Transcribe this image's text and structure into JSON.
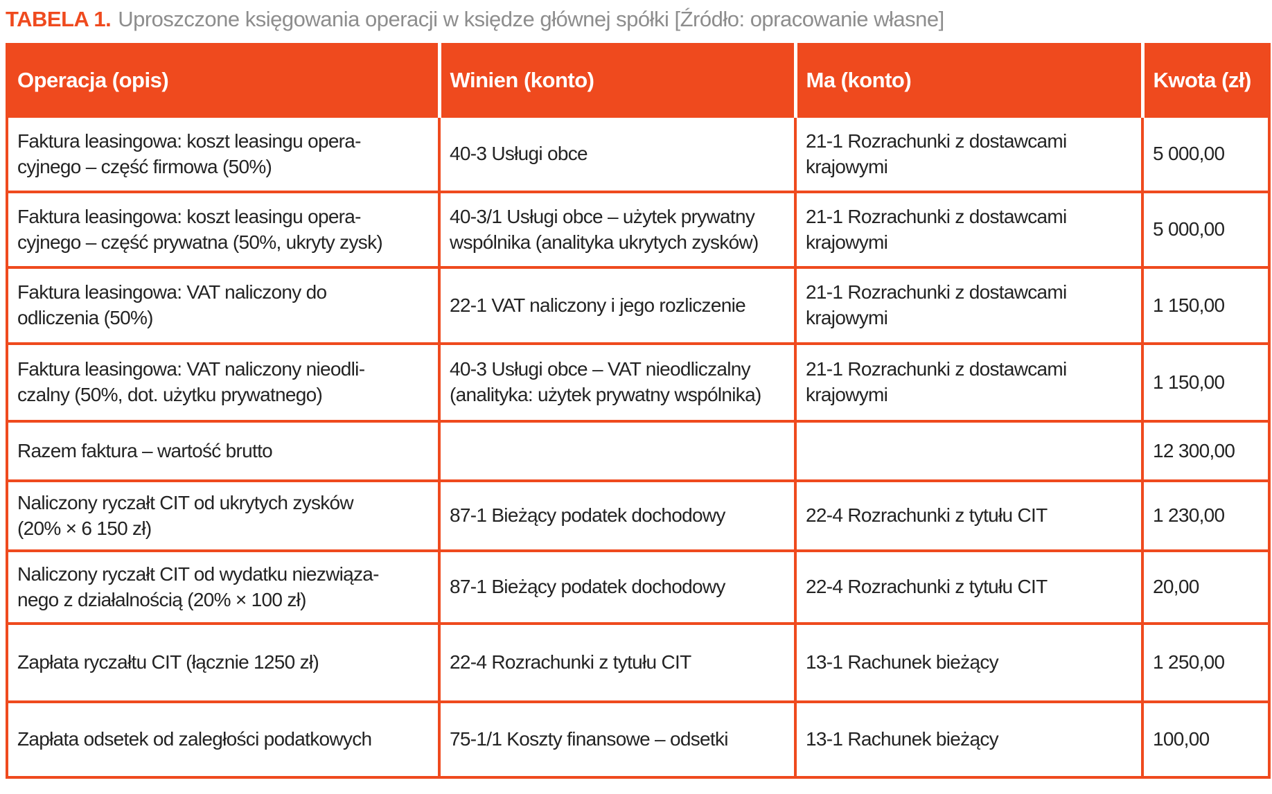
{
  "title": {
    "label": "TABELA 1.",
    "text": "Uproszczone księgowania operacji w księdze głównej spółki [Źródło: opracowanie własne]"
  },
  "colors": {
    "accent_orange": "#ef4a1e",
    "header_text": "#ffffff",
    "body_text": "#232323",
    "title_gray": "#8d8d8d"
  },
  "table": {
    "headers": [
      "Operacja (opis)",
      "Winien (konto)",
      "Ma (konto)",
      "Kwota (zł)"
    ],
    "rows": [
      {
        "operacja": "Faktura leasingowa: koszt leasingu opera-\ncyjnego – część firmowa (50%)",
        "winien": "40-3 Usługi obce",
        "ma": "21-1 Rozrachunki z dostawcami\nkrajowymi",
        "kwota": "5 000,00"
      },
      {
        "operacja": "Faktura leasingowa: koszt leasingu opera-\ncyjnego – część prywatna (50%, ukryty zysk)",
        "winien": "40-3/1 Usługi obce – użytek prywatny\nwspólnika (analityka ukrytych zysków)",
        "ma": "21-1 Rozrachunki z dostawcami\nkrajowymi",
        "kwota": "5 000,00"
      },
      {
        "operacja": "Faktura leasingowa: VAT naliczony do\nodliczenia (50%)",
        "winien": "22-1 VAT naliczony i jego rozliczenie",
        "ma": "21-1 Rozrachunki z dostawcami\nkrajowymi",
        "kwota": "1 150,00"
      },
      {
        "operacja": "Faktura leasingowa: VAT naliczony nieodli-\nczalny (50%, dot. użytku prywatnego)",
        "winien": "40-3 Usługi obce – VAT nieodliczalny\n(analityka: użytek prywatny wspólnika)",
        "ma": "21-1 Rozrachunki z dostawcami\nkrajowymi",
        "kwota": "1 150,00"
      },
      {
        "operacja": "Razem faktura – wartość brutto",
        "winien": "",
        "ma": "",
        "kwota": "12 300,00"
      },
      {
        "operacja": "Naliczony ryczałt CIT od ukrytych zysków\n(20% × 6 150 zł)",
        "winien": "87-1 Bieżący podatek dochodowy",
        "ma": "22-4 Rozrachunki z tytułu CIT",
        "kwota": "1 230,00"
      },
      {
        "operacja": "Naliczony ryczałt CIT od wydatku niezwiąza-\nnego z działalnością (20% × 100 zł)",
        "winien": "87-1 Bieżący podatek dochodowy",
        "ma": "22-4 Rozrachunki z tytułu CIT",
        "kwota": "20,00"
      },
      {
        "operacja": "Zapłata ryczałtu CIT (łącznie 1250 zł)",
        "winien": "22-4 Rozrachunki z tytułu CIT",
        "ma": "13-1 Rachunek bieżący",
        "kwota": "1 250,00"
      },
      {
        "operacja": "Zapłata odsetek od zaległości podatkowych",
        "winien": "75-1/1 Koszty finansowe – odsetki",
        "ma": "13-1 Rachunek bieżący",
        "kwota": "100,00"
      }
    ]
  }
}
